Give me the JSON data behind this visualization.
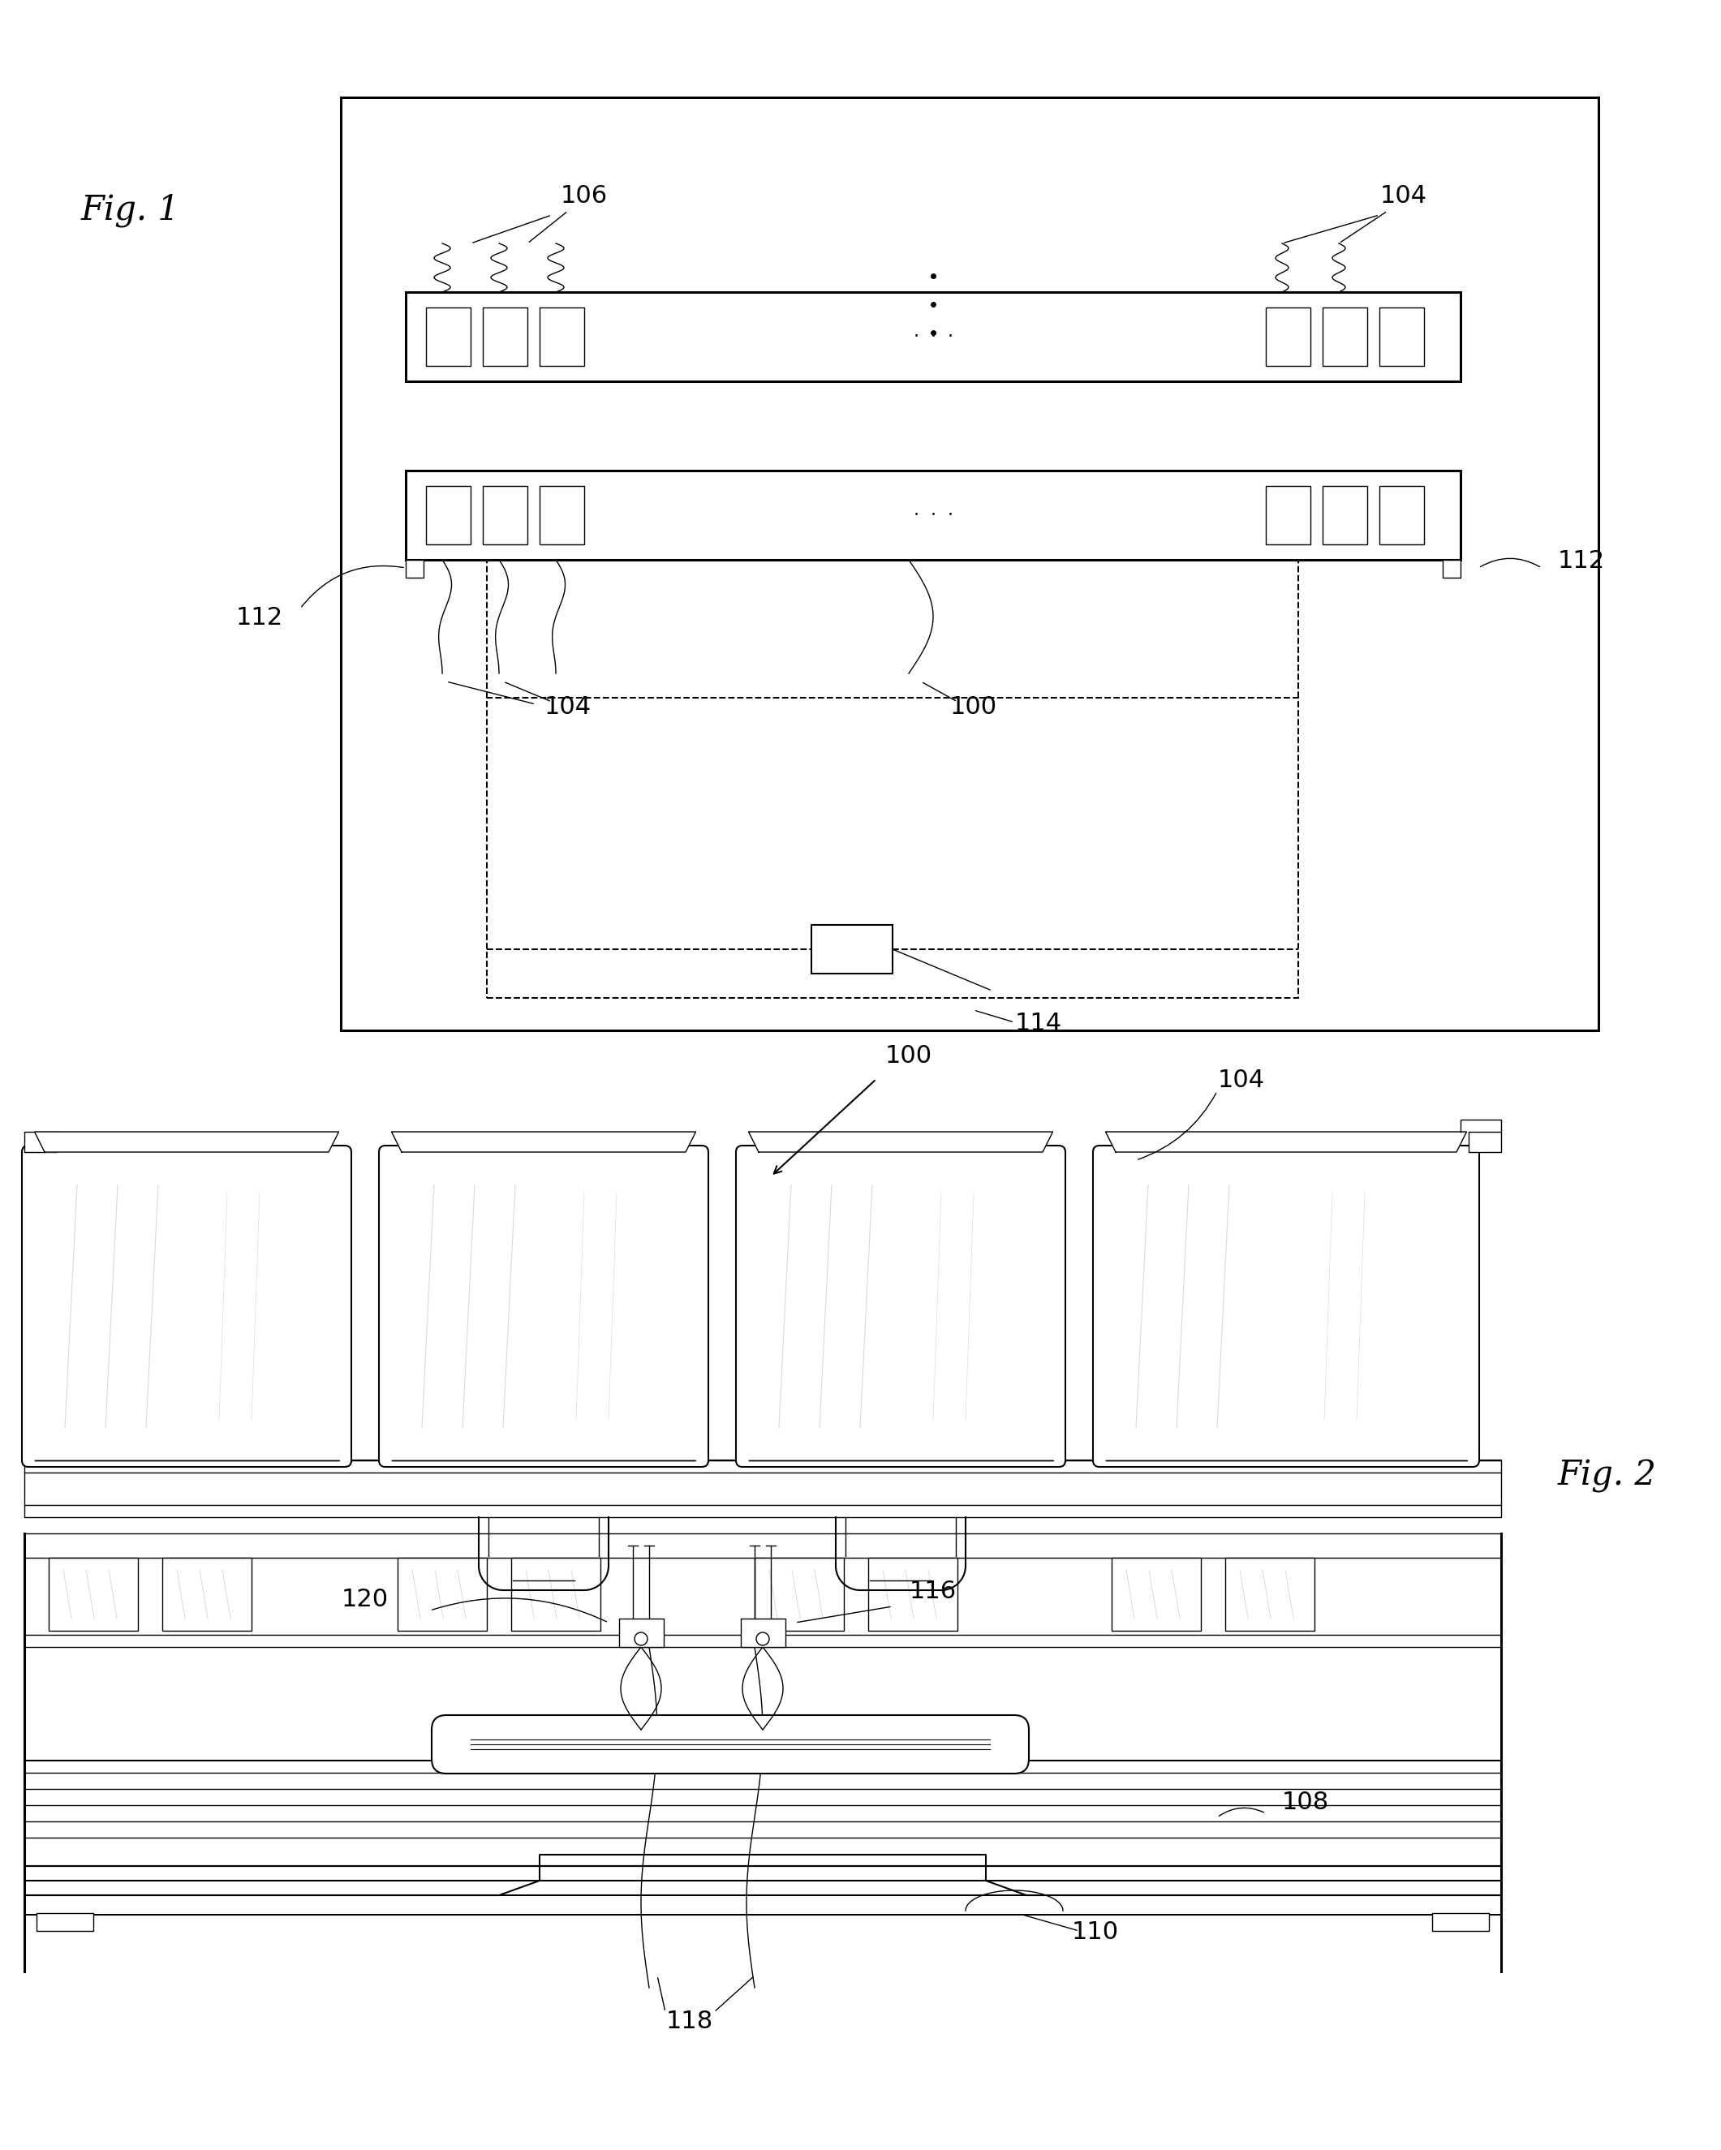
{
  "fig_width": 21.21,
  "fig_height": 26.5,
  "bg_color": "#ffffff",
  "line_color": "#000000",
  "fig1_label": "Fig. 1",
  "fig2_label": "Fig. 2",
  "label_100": "100",
  "label_104": "104",
  "label_106": "106",
  "label_108": "108",
  "label_110": "110",
  "label_112": "112",
  "label_114": "114",
  "label_116": "116",
  "label_118": "118",
  "label_120": "120",
  "shadow_color": "#cccccc",
  "light_gray": "#e8e8e8",
  "mid_gray": "#d0d0d0"
}
